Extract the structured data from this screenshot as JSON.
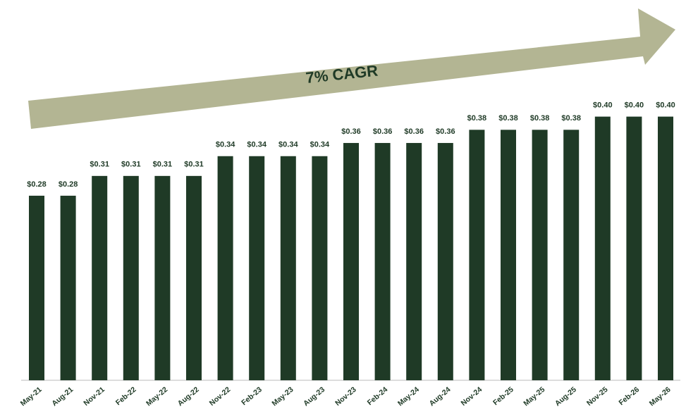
{
  "chart_data": {
    "type": "bar",
    "annotations": [
      "7% CAGR"
    ],
    "categories": [
      "May-21",
      "Aug-21",
      "Nov-21",
      "Feb-22",
      "May-22",
      "Aug-22",
      "Nov-22",
      "Feb-23",
      "May-23",
      "Aug-23",
      "Nov-23",
      "Feb-24",
      "May-24",
      "Aug-24",
      "Nov-24",
      "Feb-25",
      "May-25",
      "Aug-25",
      "Nov-25",
      "Feb-26",
      "May-26"
    ],
    "values": [
      0.28,
      0.28,
      0.31,
      0.31,
      0.31,
      0.31,
      0.34,
      0.34,
      0.34,
      0.34,
      0.36,
      0.36,
      0.36,
      0.36,
      0.38,
      0.38,
      0.38,
      0.38,
      0.4,
      0.4,
      0.4
    ],
    "value_labels": [
      "$0.28",
      "$0.28",
      "$0.31",
      "$0.31",
      "$0.31",
      "$0.31",
      "$0.34",
      "$0.34",
      "$0.34",
      "$0.34",
      "$0.36",
      "$0.36",
      "$0.36",
      "$0.36",
      "$0.38",
      "$0.38",
      "$0.38",
      "$0.38",
      "$0.40",
      "$0.40",
      "$0.40"
    ],
    "color": "#1f3a26"
  }
}
